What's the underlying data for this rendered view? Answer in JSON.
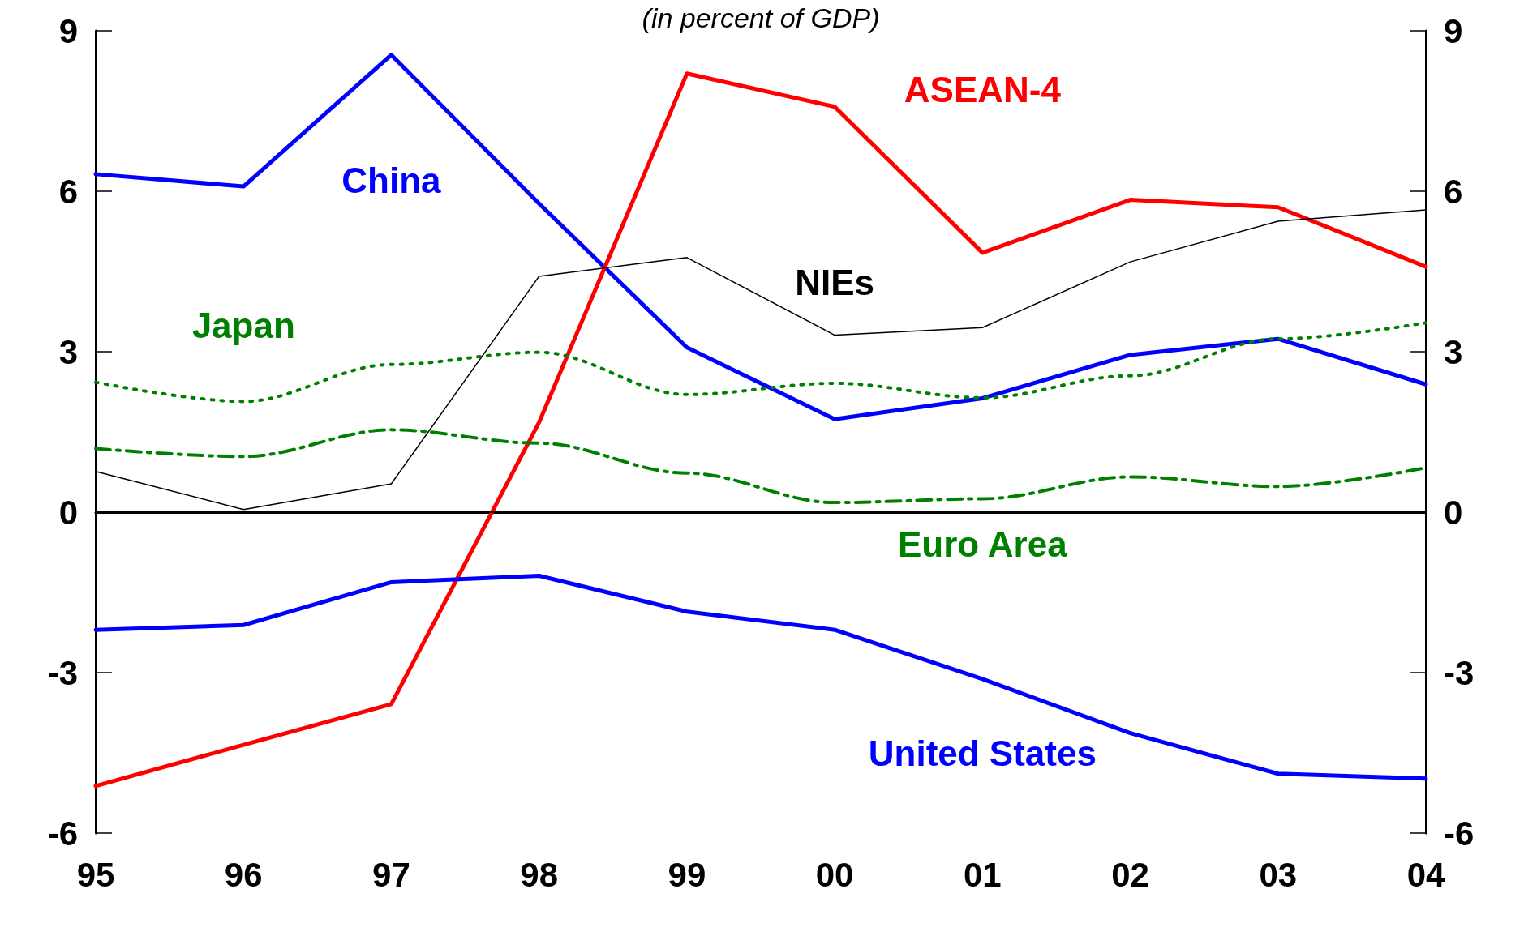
{
  "chart_data": {
    "type": "line",
    "subtitle": "(in percent of GDP)",
    "categories": [
      "95",
      "96",
      "97",
      "98",
      "99",
      "00",
      "01",
      "02",
      "03",
      "04"
    ],
    "ylim": [
      -6,
      9
    ],
    "yticks": [
      -6,
      -3,
      0,
      3,
      6,
      9
    ],
    "y2lim": [
      -6,
      9
    ],
    "y2ticks": [
      -6,
      -3,
      0,
      3,
      6,
      9
    ],
    "grid": false,
    "legend": false,
    "marker": "none",
    "ref_lines": [
      {
        "axis": "y",
        "value": 0,
        "color": "#000000"
      }
    ],
    "series": [
      {
        "name": "China",
        "color": "#0000ff",
        "line_style": "solid",
        "values": [
          6.32,
          6.09,
          8.55,
          5.77,
          3.08,
          1.74,
          2.13,
          2.94,
          3.24,
          2.39
        ]
      },
      {
        "name": "ASEAN-4",
        "color": "#ff0000",
        "line_style": "solid",
        "values": [
          -5.12,
          -4.35,
          -3.59,
          1.68,
          8.2,
          7.58,
          4.85,
          5.84,
          5.7,
          4.59
        ]
      },
      {
        "name": "NIEs",
        "color": "#000000",
        "line_style": "solid",
        "values": [
          0.76,
          0.05,
          0.53,
          4.41,
          4.76,
          3.31,
          3.45,
          4.68,
          5.44,
          5.65
        ]
      },
      {
        "name": "Japan",
        "color": "#008000",
        "line_style": "dotted",
        "values": [
          2.43,
          2.07,
          2.76,
          2.99,
          2.2,
          2.41,
          2.14,
          2.55,
          3.24,
          3.54
        ]
      },
      {
        "name": "Euro Area",
        "color": "#008000",
        "line_style": "dashed",
        "values": [
          1.19,
          1.04,
          1.54,
          1.29,
          0.73,
          0.18,
          0.25,
          0.66,
          0.48,
          0.83
        ]
      },
      {
        "name": "United States",
        "color": "#0000ff",
        "line_style": "solid",
        "values": [
          -2.2,
          -2.11,
          -1.31,
          -1.19,
          -1.86,
          -2.2,
          -3.12,
          -4.13,
          -4.89,
          -4.98
        ]
      }
    ]
  }
}
